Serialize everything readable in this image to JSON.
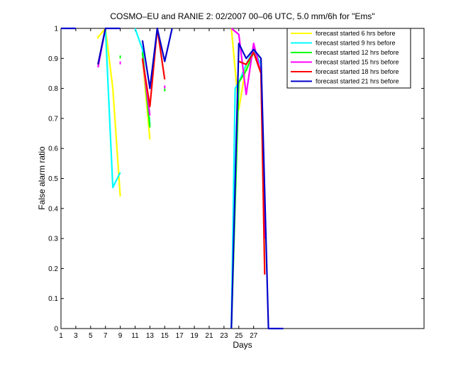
{
  "chart_data": {
    "type": "line",
    "title": "COSMO–EU and RANIE 2: 02/2007 00–06 UTC, 5.0 mm/6h for \"Ems\"",
    "xlabel": "Days",
    "ylabel": "False alarm ratio",
    "xlim": [
      1,
      50
    ],
    "ylim": [
      0,
      1
    ],
    "x_ticks": [
      "1",
      "3",
      "5",
      "7",
      "9",
      "11",
      "13",
      "15",
      "17",
      "19",
      "21",
      "23",
      "25",
      "27"
    ],
    "y_ticks": [
      "0",
      "0.1",
      "0.2",
      "0.3",
      "0.4",
      "0.5",
      "0.6",
      "0.7",
      "0.8",
      "0.9",
      "1"
    ],
    "grid": false,
    "legend_position": "top-right",
    "series": [
      {
        "name": "forecast started 6 hrs before",
        "color": "#ffff00",
        "segments": [
          [
            [
              6,
              0.97
            ],
            [
              7,
              1.0
            ],
            [
              8,
              0.8
            ],
            [
              9,
              0.44
            ]
          ],
          [
            [
              12,
              0.9
            ],
            [
              13,
              0.63
            ]
          ],
          [
            [
              24,
              1.0
            ],
            [
              25,
              0.73
            ],
            [
              26,
              0.88
            ],
            [
              27,
              0.92
            ],
            [
              28,
              0.9
            ],
            [
              28.5,
              0.2
            ]
          ]
        ],
        "points": [
          [
            6,
            0.97
          ]
        ]
      },
      {
        "name": "forecast started 9 hrs before",
        "color": "#00ffff",
        "segments": [
          [
            [
              7,
              1.0
            ],
            [
              8,
              0.47
            ],
            [
              9,
              0.52
            ]
          ],
          [
            [
              11,
              1.0
            ],
            [
              12,
              0.93
            ],
            [
              13,
              0.68
            ]
          ],
          [
            [
              24,
              0.0
            ],
            [
              24.5,
              0.8
            ],
            [
              25,
              0.82
            ],
            [
              26,
              0.88
            ],
            [
              27,
              0.93
            ],
            [
              28,
              0.88
            ],
            [
              28.5,
              0.3
            ]
          ]
        ],
        "points": []
      },
      {
        "name": "forecast started 12 hrs before",
        "color": "#00ff00",
        "segments": [
          [
            [
              12,
              0.92
            ],
            [
              13,
              0.67
            ]
          ],
          [
            [
              24,
              0.0
            ],
            [
              25,
              0.82
            ],
            [
              26,
              0.86
            ],
            [
              27,
              0.92
            ],
            [
              28,
              0.85
            ],
            [
              28.5,
              0.3
            ]
          ]
        ],
        "points": [
          [
            9,
            0.905
          ],
          [
            15,
            0.795
          ]
        ]
      },
      {
        "name": "forecast started 15 hrs before",
        "color": "#ff00ff",
        "segments": [
          [
            [
              6,
              0.87
            ],
            [
              7,
              1.0
            ]
          ],
          [
            [
              12,
              0.9
            ],
            [
              13,
              0.71
            ]
          ],
          [
            [
              24,
              1.0
            ],
            [
              25,
              0.98
            ],
            [
              26,
              0.78
            ],
            [
              27,
              0.95
            ],
            [
              28,
              0.85
            ],
            [
              28.5,
              0.3
            ]
          ]
        ],
        "points": [
          [
            9,
            0.885
          ],
          [
            15,
            0.805
          ]
        ]
      },
      {
        "name": "forecast started 18 hrs before",
        "color": "#ff0000",
        "segments": [
          [
            [
              6,
              0.88
            ],
            [
              7,
              1.0
            ]
          ],
          [
            [
              12,
              0.9
            ],
            [
              13,
              0.74
            ],
            [
              14,
              1.0
            ],
            [
              15,
              0.83
            ]
          ],
          [
            [
              25,
              0.89
            ],
            [
              26,
              0.88
            ],
            [
              27,
              0.92
            ],
            [
              28,
              0.85
            ],
            [
              28.5,
              0.18
            ]
          ]
        ],
        "points": []
      },
      {
        "name": "forecast started 21 hrs before",
        "color": "#0000cc",
        "segments": [
          [
            [
              1,
              1.0
            ],
            [
              3,
              1.0
            ]
          ],
          [
            [
              6,
              0.88
            ],
            [
              7,
              1.0
            ],
            [
              9,
              1.0
            ]
          ],
          [
            [
              12,
              0.96
            ],
            [
              13,
              0.8
            ],
            [
              14,
              1.0
            ],
            [
              15,
              0.89
            ],
            [
              16,
              1.0
            ]
          ],
          [
            [
              24,
              0.0
            ],
            [
              25,
              0.95
            ],
            [
              26,
              0.9
            ],
            [
              27,
              0.93
            ],
            [
              28,
              0.9
            ],
            [
              29,
              0.0
            ],
            [
              31,
              0.0
            ]
          ]
        ],
        "points": []
      }
    ]
  }
}
